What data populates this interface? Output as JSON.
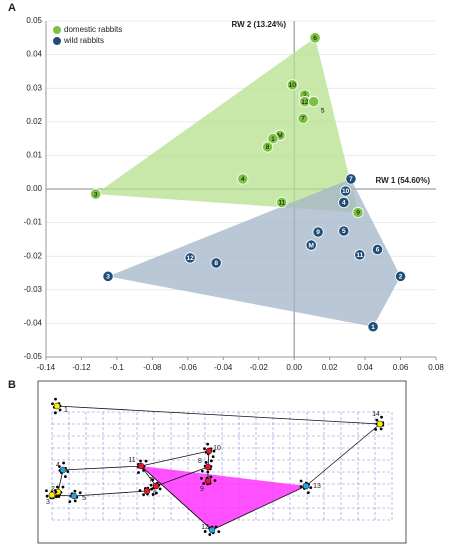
{
  "chart_data": {
    "type": "scatter",
    "panel_label": "A",
    "xlabel": "RW 1 (54.60%)",
    "ylabel": "RW 2 (13.24%)",
    "xlim": [
      -0.14,
      0.08
    ],
    "ylim": [
      -0.05,
      0.05
    ],
    "xticks": [
      -0.14,
      -0.12,
      -0.1,
      -0.08,
      -0.06,
      -0.04,
      -0.02,
      {
        "value": 0,
        "label": "0.00"
      },
      0.02,
      0.04,
      0.06,
      0.08
    ],
    "yticks": [
      -0.05,
      -0.04,
      -0.03,
      -0.02,
      -0.01,
      {
        "value": 0,
        "label": "0.00"
      },
      0.01,
      0.02,
      0.03,
      0.04,
      0.05
    ],
    "grid": true,
    "legend": "upper left",
    "series": [
      {
        "name": "domestic rabbits",
        "color": "#7cc242",
        "hull_color": "#b5e08c",
        "labels": [
          "6",
          "10",
          "2",
          "12",
          "5",
          "7",
          "M",
          "1",
          "8",
          "4",
          "3",
          "11",
          "9"
        ],
        "x": [
          0.0118,
          -0.001,
          0.006,
          0.006,
          0.011,
          0.005,
          -0.008,
          -0.012,
          -0.015,
          -0.029,
          -0.112,
          -0.007,
          0.036
        ],
        "values": [
          0.045,
          0.031,
          0.028,
          0.026,
          0.026,
          0.021,
          0.016,
          0.015,
          0.0125,
          0.003,
          -0.0015,
          -0.004,
          -0.007
        ]
      },
      {
        "name": "wild rabbits",
        "color": "#1f4e79",
        "hull_color": "#a3b4c8",
        "labels": [
          "7",
          "10",
          "4",
          "9",
          "5",
          "M",
          "6",
          "11",
          "12",
          "8",
          "3",
          "2",
          "1"
        ],
        "x": [
          0.032,
          0.029,
          0.028,
          0.0135,
          0.028,
          0.0096,
          0.047,
          0.037,
          -0.0587,
          -0.044,
          -0.105,
          0.06,
          0.0445
        ],
        "values": [
          0.003,
          -0.0006,
          -0.004,
          -0.0128,
          -0.0125,
          -0.0167,
          -0.018,
          -0.0196,
          -0.0205,
          -0.022,
          -0.026,
          -0.026,
          -0.041
        ]
      }
    ]
  },
  "panel_b": {
    "panel_label": "B",
    "landmarks": [
      "1",
      "2",
      "3",
      "4",
      "5",
      "6",
      "7",
      "8",
      "9",
      "10",
      "11",
      "12",
      "13",
      "14"
    ]
  }
}
